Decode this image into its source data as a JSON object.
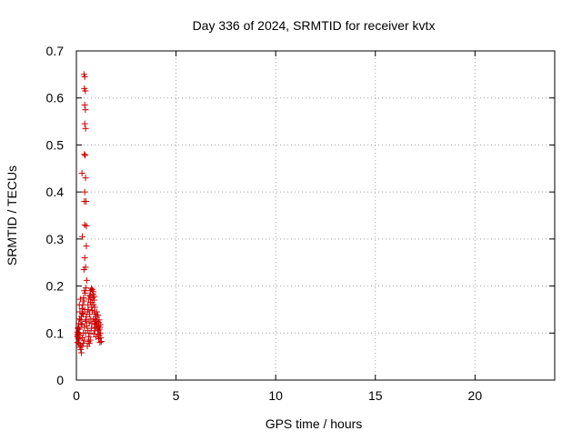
{
  "chart_data": {
    "type": "scatter",
    "title": "Day 336 of 2024, SRMTID for receiver kvtx",
    "xlabel": "GPS time / hours",
    "ylabel": "SRMTID / TECUs",
    "xlim": [
      0,
      24
    ],
    "ylim": [
      0,
      0.7
    ],
    "x_ticks": [
      0,
      5,
      10,
      15,
      20
    ],
    "x_tick_labels": [
      "0",
      "5",
      "10",
      "15",
      "20"
    ],
    "y_ticks": [
      0,
      0.1,
      0.2,
      0.3,
      0.4,
      0.5,
      0.6,
      0.7
    ],
    "y_tick_labels": [
      "0",
      "0.1",
      "0.2",
      "0.3",
      "0.4",
      "0.5",
      "0.6",
      "0.7"
    ],
    "grid": true,
    "marker": "+",
    "marker_color": "#cc0000",
    "series": [
      {
        "name": "kvtx",
        "points": [
          [
            0.38,
            0.65
          ],
          [
            0.42,
            0.645
          ],
          [
            0.4,
            0.62
          ],
          [
            0.45,
            0.615
          ],
          [
            0.42,
            0.585
          ],
          [
            0.45,
            0.575
          ],
          [
            0.42,
            0.545
          ],
          [
            0.46,
            0.535
          ],
          [
            0.4,
            0.48
          ],
          [
            0.44,
            0.478
          ],
          [
            0.28,
            0.44
          ],
          [
            0.46,
            0.43
          ],
          [
            0.42,
            0.4
          ],
          [
            0.4,
            0.38
          ],
          [
            0.48,
            0.38
          ],
          [
            0.42,
            0.33
          ],
          [
            0.5,
            0.328
          ],
          [
            0.3,
            0.305
          ],
          [
            0.5,
            0.285
          ],
          [
            0.42,
            0.26
          ],
          [
            0.46,
            0.24
          ],
          [
            0.38,
            0.235
          ],
          [
            0.52,
            0.212
          ],
          [
            0.48,
            0.196
          ],
          [
            0.4,
            0.19
          ],
          [
            0.36,
            0.175
          ],
          [
            0.2,
            0.172
          ],
          [
            0.15,
            0.16
          ],
          [
            0.28,
            0.152
          ],
          [
            0.18,
            0.145
          ],
          [
            0.3,
            0.142
          ],
          [
            0.25,
            0.135
          ],
          [
            0.22,
            0.128
          ],
          [
            0.12,
            0.12
          ],
          [
            0.28,
            0.118
          ],
          [
            0.1,
            0.112
          ],
          [
            0.15,
            0.108
          ],
          [
            0.05,
            0.102
          ],
          [
            0.12,
            0.1
          ],
          [
            0.08,
            0.098
          ],
          [
            0.18,
            0.095
          ],
          [
            0.05,
            0.092
          ],
          [
            0.1,
            0.088
          ],
          [
            0.14,
            0.085
          ],
          [
            0.06,
            0.08
          ],
          [
            0.12,
            0.078
          ],
          [
            0.2,
            0.075
          ],
          [
            0.28,
            0.072
          ],
          [
            0.22,
            0.065
          ],
          [
            0.25,
            0.058
          ],
          [
            0.18,
            0.07
          ],
          [
            0.3,
            0.09
          ],
          [
            0.35,
            0.1
          ],
          [
            0.4,
            0.112
          ],
          [
            0.45,
            0.125
          ],
          [
            0.5,
            0.135
          ],
          [
            0.55,
            0.145
          ],
          [
            0.58,
            0.16
          ],
          [
            0.62,
            0.172
          ],
          [
            0.65,
            0.18
          ],
          [
            0.7,
            0.19
          ],
          [
            0.75,
            0.195
          ],
          [
            0.8,
            0.192
          ],
          [
            0.85,
            0.188
          ],
          [
            0.72,
            0.178
          ],
          [
            0.82,
            0.175
          ],
          [
            0.88,
            0.17
          ],
          [
            0.78,
            0.165
          ],
          [
            0.86,
            0.16
          ],
          [
            0.92,
            0.155
          ],
          [
            0.8,
            0.148
          ],
          [
            0.9,
            0.145
          ],
          [
            0.95,
            0.14
          ],
          [
            1.0,
            0.135
          ],
          [
            0.85,
            0.13
          ],
          [
            0.96,
            0.128
          ],
          [
            1.05,
            0.125
          ],
          [
            0.9,
            0.12
          ],
          [
            1.0,
            0.118
          ],
          [
            1.1,
            0.115
          ],
          [
            0.95,
            0.112
          ],
          [
            1.05,
            0.11
          ],
          [
            1.15,
            0.108
          ],
          [
            1.2,
            0.118
          ],
          [
            1.12,
            0.122
          ],
          [
            1.18,
            0.112
          ],
          [
            1.1,
            0.105
          ],
          [
            1.2,
            0.1
          ],
          [
            1.08,
            0.098
          ],
          [
            1.15,
            0.095
          ],
          [
            1.22,
            0.09
          ],
          [
            1.12,
            0.088
          ],
          [
            1.25,
            0.082
          ],
          [
            1.18,
            0.08
          ],
          [
            0.7,
            0.085
          ],
          [
            0.62,
            0.092
          ],
          [
            0.68,
            0.1
          ],
          [
            0.58,
            0.105
          ],
          [
            0.75,
            0.11
          ],
          [
            0.65,
            0.078
          ],
          [
            0.55,
            0.072
          ],
          [
            0.6,
            0.082
          ],
          [
            0.88,
            0.098
          ],
          [
            0.92,
            0.105
          ],
          [
            0.98,
            0.092
          ],
          [
            0.78,
            0.12
          ],
          [
            0.72,
            0.13
          ],
          [
            0.66,
            0.14
          ],
          [
            0.6,
            0.15
          ],
          [
            0.76,
            0.155
          ],
          [
            0.84,
            0.183
          ],
          [
            0.9,
            0.178
          ],
          [
            0.7,
            0.165
          ],
          [
            0.64,
            0.122
          ],
          [
            0.52,
            0.115
          ],
          [
            0.48,
            0.128
          ],
          [
            0.35,
            0.14
          ],
          [
            0.32,
            0.16
          ],
          [
            0.38,
            0.168
          ],
          [
            0.44,
            0.185
          ],
          [
            0.42,
            0.15
          ],
          [
            0.46,
            0.1
          ],
          [
            0.4,
            0.085
          ],
          [
            0.34,
            0.078
          ],
          [
            1.02,
            0.145
          ],
          [
            1.08,
            0.138
          ],
          [
            1.14,
            0.128
          ],
          [
            0.94,
            0.125
          ],
          [
            0.08,
            0.11
          ],
          [
            0.06,
            0.095
          ],
          [
            0.16,
            0.13
          ],
          [
            0.24,
            0.12
          ]
        ]
      }
    ]
  }
}
